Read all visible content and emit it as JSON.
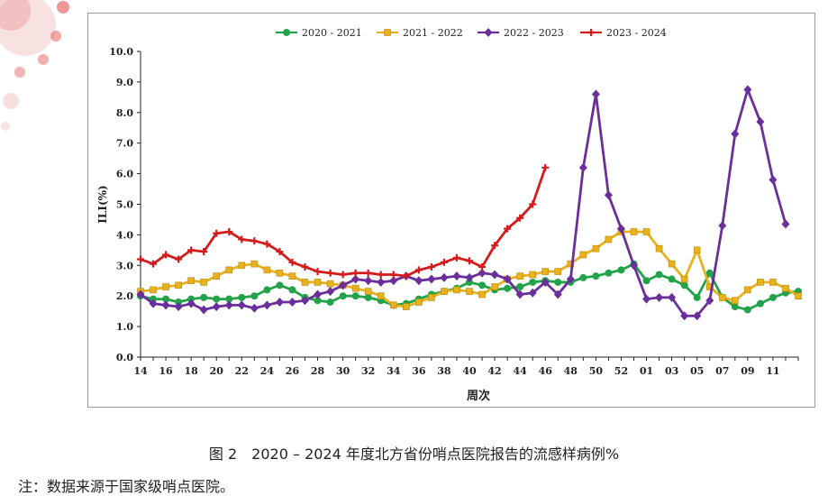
{
  "figure_caption": "图 2　2020 – 2024 年度北方省份哨点医院报告的流感样病例%",
  "note": "注：数据来源于国家级哨点医院。",
  "colors": {
    "s2020": "#22a34a",
    "s2021": "#e8b21e",
    "s2022": "#6a2f9a",
    "s2023": "#d41c1c",
    "deco": "#e07070"
  },
  "chart_data": {
    "type": "line",
    "xlabel": "周次",
    "ylabel": "ILI(%)",
    "ylim": [
      0,
      10
    ],
    "yticks": [
      "0.0",
      "1.0",
      "2.0",
      "3.0",
      "4.0",
      "5.0",
      "6.0",
      "7.0",
      "8.0",
      "9.0",
      "10.0"
    ],
    "xtick_labels": [
      "14",
      "16",
      "18",
      "20",
      "22",
      "24",
      "26",
      "28",
      "30",
      "32",
      "34",
      "36",
      "38",
      "40",
      "42",
      "44",
      "46",
      "48",
      "50",
      "52",
      "01",
      "03",
      "05",
      "07",
      "09",
      "11"
    ],
    "legend_position": "top",
    "grid": false,
    "series": [
      {
        "name": "2020 - 2021",
        "marker": "circle",
        "values": [
          2.0,
          1.9,
          1.9,
          1.8,
          1.9,
          1.95,
          1.9,
          1.9,
          1.95,
          2.0,
          2.2,
          2.35,
          2.2,
          1.95,
          1.85,
          1.8,
          2.0,
          2.0,
          1.95,
          1.85,
          1.7,
          1.75,
          1.9,
          2.05,
          2.15,
          2.25,
          2.45,
          2.35,
          2.2,
          2.25,
          2.3,
          2.45,
          2.5,
          2.45,
          2.45,
          2.6,
          2.65,
          2.75,
          2.85,
          3.05,
          2.5,
          2.7,
          2.55,
          2.35,
          1.95,
          2.75,
          1.95,
          1.65,
          1.55,
          1.75,
          1.95,
          2.1,
          2.15
        ]
      },
      {
        "name": "2021 - 2022",
        "marker": "square",
        "values": [
          2.15,
          2.2,
          2.3,
          2.35,
          2.5,
          2.45,
          2.65,
          2.85,
          3.0,
          3.05,
          2.85,
          2.75,
          2.65,
          2.45,
          2.45,
          2.4,
          2.35,
          2.25,
          2.15,
          2.0,
          1.7,
          1.65,
          1.8,
          1.95,
          2.15,
          2.2,
          2.15,
          2.05,
          2.3,
          2.55,
          2.65,
          2.7,
          2.8,
          2.8,
          3.05,
          3.35,
          3.55,
          3.85,
          4.1,
          4.1,
          4.1,
          3.55,
          3.05,
          2.55,
          3.5,
          2.3,
          1.95,
          1.85,
          2.2,
          2.45,
          2.45,
          2.25,
          2.0
        ]
      },
      {
        "name": "2022 - 2023",
        "marker": "diamond",
        "values": [
          2.05,
          1.75,
          1.7,
          1.65,
          1.75,
          1.55,
          1.65,
          1.7,
          1.7,
          1.6,
          1.7,
          1.8,
          1.8,
          1.85,
          2.05,
          2.15,
          2.35,
          2.55,
          2.5,
          2.45,
          2.5,
          2.65,
          2.5,
          2.55,
          2.6,
          2.65,
          2.6,
          2.75,
          2.7,
          2.55,
          2.05,
          2.1,
          2.45,
          2.05,
          2.55,
          6.2,
          8.6,
          5.3,
          4.2,
          3.0,
          1.9,
          1.95,
          1.95,
          1.35,
          1.35,
          1.85,
          4.3,
          7.3,
          8.75,
          7.7,
          5.8,
          4.35
        ]
      },
      {
        "name": "2023 - 2024",
        "marker": "plus",
        "values": [
          3.2,
          3.05,
          3.35,
          3.2,
          3.5,
          3.45,
          4.05,
          4.1,
          3.85,
          3.8,
          3.7,
          3.45,
          3.1,
          2.95,
          2.8,
          2.75,
          2.7,
          2.75,
          2.75,
          2.7,
          2.7,
          2.65,
          2.85,
          2.95,
          3.1,
          3.25,
          3.15,
          2.95,
          3.65,
          4.2,
          4.55,
          5.0,
          6.2
        ]
      }
    ]
  }
}
